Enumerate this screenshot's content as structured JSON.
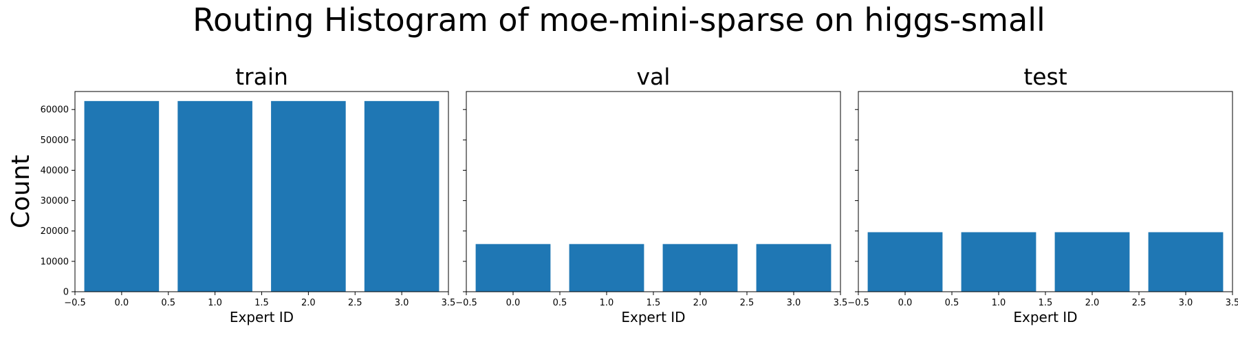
{
  "suptitle": "Routing Histogram of moe-mini-sparse on higgs-small",
  "bar_color": "#1f77b4",
  "chart_data": [
    {
      "type": "bar",
      "title": "train",
      "x": [
        0,
        1,
        2,
        3
      ],
      "values": [
        62800,
        62800,
        62800,
        62800
      ],
      "bar_width": 0.8,
      "xlabel": "Expert ID",
      "ylabel": "Count",
      "xlim": [
        -0.5,
        3.5
      ],
      "ylim": [
        0,
        65940
      ],
      "xticks": [
        "−0.5",
        "0.0",
        "0.5",
        "1.0",
        "1.5",
        "2.0",
        "2.5",
        "3.0",
        "3.5"
      ],
      "yticks": [
        "0",
        "10000",
        "20000",
        "30000",
        "40000",
        "50000",
        "60000"
      ],
      "grid": false
    },
    {
      "type": "bar",
      "title": "val",
      "x": [
        0,
        1,
        2,
        3
      ],
      "values": [
        15700,
        15700,
        15700,
        15700
      ],
      "bar_width": 0.8,
      "xlabel": "Expert ID",
      "ylabel": "",
      "xlim": [
        -0.5,
        3.5
      ],
      "ylim": [
        0,
        65940
      ],
      "xticks": [
        "−0.5",
        "0.0",
        "0.5",
        "1.0",
        "1.5",
        "2.0",
        "2.5",
        "3.0",
        "3.5"
      ],
      "yticks": [],
      "grid": false
    },
    {
      "type": "bar",
      "title": "test",
      "x": [
        0,
        1,
        2,
        3
      ],
      "values": [
        19600,
        19600,
        19600,
        19600
      ],
      "bar_width": 0.8,
      "xlabel": "Expert ID",
      "ylabel": "",
      "xlim": [
        -0.5,
        3.5
      ],
      "ylim": [
        0,
        65940
      ],
      "xticks": [
        "−0.5",
        "0.0",
        "0.5",
        "1.0",
        "1.5",
        "2.0",
        "2.5",
        "3.0",
        "3.5"
      ],
      "yticks": [],
      "grid": false
    }
  ]
}
